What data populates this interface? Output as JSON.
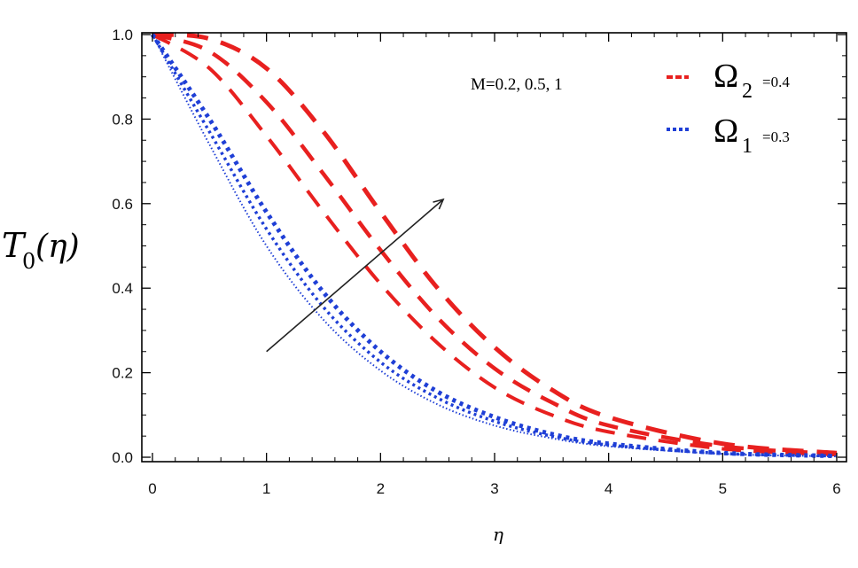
{
  "chart_data": {
    "type": "line",
    "xlabel": "η",
    "ylabel_main": "T",
    "ylabel_sub": "0",
    "ylabel_arg": "(η)",
    "xlim": [
      0,
      6
    ],
    "ylim": [
      0,
      1
    ],
    "x_ticks": [
      0,
      1,
      2,
      3,
      4,
      5,
      6
    ],
    "x_tick_labels": [
      "0",
      "1",
      "2",
      "3",
      "4",
      "5",
      "6"
    ],
    "y_ticks": [
      0,
      0.2,
      0.4,
      0.6,
      0.8,
      1.0
    ],
    "y_tick_labels": [
      "0.0",
      "0.2",
      "0.4",
      "0.6",
      "0.8",
      "1.0"
    ],
    "grid": false,
    "annotation": "M=0.2, 0.5, 1",
    "arrow": {
      "from": [
        1.0,
        0.25
      ],
      "to": [
        2.55,
        0.61
      ]
    },
    "legend": [
      {
        "symbol": "Ω",
        "sub": "2",
        "text": "=0.4",
        "color": "#e8201f",
        "dash": "dashed"
      },
      {
        "symbol": "Ω",
        "sub": "1",
        "text": "=0.3",
        "color": "#1f3fd6",
        "dash": "dotted"
      }
    ],
    "series": [
      {
        "group": "red",
        "color": "#e8201f",
        "x": [
          0,
          0.5,
          1,
          1.5,
          2,
          2.5,
          3,
          3.5,
          4,
          5,
          6
        ],
        "y": [
          1.0,
          0.92,
          0.76,
          0.58,
          0.41,
          0.27,
          0.165,
          0.1,
          0.06,
          0.02,
          0.006
        ]
      },
      {
        "group": "red",
        "color": "#e8201f",
        "x": [
          0,
          0.5,
          1,
          1.5,
          2,
          2.5,
          3,
          3.5,
          4,
          5,
          6
        ],
        "y": [
          1.0,
          0.96,
          0.84,
          0.67,
          0.49,
          0.33,
          0.21,
          0.13,
          0.075,
          0.026,
          0.008
        ]
      },
      {
        "group": "red",
        "color": "#e8201f",
        "x": [
          0,
          0.5,
          1,
          1.5,
          2,
          2.5,
          3,
          3.5,
          4,
          5,
          6
        ],
        "y": [
          1.0,
          0.99,
          0.92,
          0.77,
          0.58,
          0.4,
          0.26,
          0.16,
          0.095,
          0.032,
          0.01
        ]
      },
      {
        "group": "blue",
        "color": "#1f3fd6",
        "x": [
          0,
          0.5,
          1,
          1.5,
          2,
          2.5,
          3,
          3.5,
          4,
          5,
          6
        ],
        "y": [
          1.0,
          0.8,
          0.58,
          0.39,
          0.25,
          0.155,
          0.095,
          0.055,
          0.032,
          0.01,
          0.003
        ]
      },
      {
        "group": "blue",
        "color": "#1f3fd6",
        "x": [
          0,
          0.5,
          1,
          1.5,
          2,
          2.5,
          3,
          3.5,
          4,
          5,
          6
        ],
        "y": [
          1.0,
          0.77,
          0.54,
          0.355,
          0.225,
          0.14,
          0.085,
          0.05,
          0.029,
          0.009,
          0.003
        ]
      },
      {
        "group": "blue",
        "color": "#1f3fd6",
        "x": [
          0,
          0.5,
          1,
          1.5,
          2,
          2.5,
          3,
          3.5,
          4,
          5,
          6
        ],
        "y": [
          1.0,
          0.74,
          0.5,
          0.325,
          0.205,
          0.125,
          0.075,
          0.045,
          0.026,
          0.008,
          0.002
        ]
      }
    ]
  },
  "colors": {
    "frame": "#000000",
    "arrow": "#222222"
  }
}
